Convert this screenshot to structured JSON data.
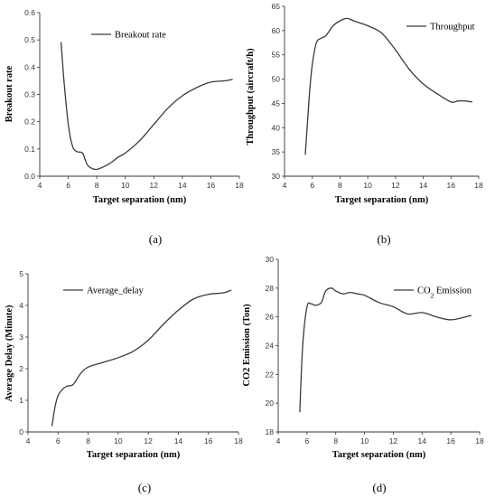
{
  "chart_data": [
    {
      "type": "line",
      "panel_label": "(a)",
      "xlabel": "Target separation (nm)",
      "ylabel": "Breakout rate",
      "xlim": [
        4,
        18
      ],
      "ylim": [
        0,
        0.6
      ],
      "x_ticks": [
        4,
        6,
        8,
        10,
        12,
        14,
        16,
        18
      ],
      "y_ticks": [
        0.0,
        0.1,
        0.2,
        0.3,
        0.4,
        0.5,
        0.6
      ],
      "y_tick_labels": [
        "0.0",
        "0.1",
        "0.2",
        "0.3",
        "0.4",
        "0.5",
        "0.6"
      ],
      "legend_position": "top-center",
      "series": [
        {
          "name": "Breakout rate",
          "x": [
            5.5,
            5.7,
            6.0,
            6.3,
            6.6,
            7.0,
            7.3,
            7.6,
            8.0,
            8.5,
            9.0,
            9.5,
            10.0,
            11.0,
            12.0,
            13.0,
            14.0,
            15.0,
            16.0,
            17.0,
            17.5
          ],
          "y": [
            0.49,
            0.35,
            0.19,
            0.11,
            0.09,
            0.085,
            0.045,
            0.03,
            0.025,
            0.035,
            0.05,
            0.07,
            0.085,
            0.13,
            0.19,
            0.25,
            0.295,
            0.325,
            0.345,
            0.35,
            0.355
          ]
        }
      ]
    },
    {
      "type": "line",
      "panel_label": "(b)",
      "xlabel": "Target separation (nm)",
      "ylabel": "Throughput (aircraft/h)",
      "xlim": [
        4,
        18
      ],
      "ylim": [
        30,
        65
      ],
      "x_ticks": [
        4,
        6,
        8,
        10,
        12,
        14,
        16,
        18
      ],
      "y_ticks": [
        30,
        35,
        40,
        45,
        50,
        55,
        60,
        65
      ],
      "y_tick_labels": [
        "30",
        "35",
        "40",
        "45",
        "50",
        "55",
        "60",
        "65"
      ],
      "legend_position": "top-right",
      "series": [
        {
          "name": "Throughput",
          "x": [
            5.5,
            5.8,
            6.0,
            6.3,
            6.7,
            7.0,
            7.5,
            8.0,
            8.5,
            9.0,
            9.5,
            10.0,
            11.0,
            12.0,
            13.0,
            14.0,
            15.0,
            16.0,
            16.5,
            17.0,
            17.5
          ],
          "y": [
            34.5,
            47,
            53,
            57.5,
            58.5,
            59,
            61,
            62,
            62.5,
            62,
            61.5,
            61,
            59.5,
            56,
            52,
            49,
            47,
            45.3,
            45.5,
            45.5,
            45.3
          ]
        }
      ]
    },
    {
      "type": "line",
      "panel_label": "(c)",
      "xlabel": "Target separation (nm)",
      "ylabel": "Average Delay (Minute)",
      "xlim": [
        4,
        18
      ],
      "ylim": [
        0,
        5
      ],
      "x_ticks": [
        4,
        6,
        8,
        10,
        12,
        14,
        16,
        18
      ],
      "y_ticks": [
        0,
        1,
        2,
        3,
        4,
        5
      ],
      "y_tick_labels": [
        "0",
        "1",
        "2",
        "3",
        "4",
        "5"
      ],
      "legend_position": "top-left",
      "series": [
        {
          "name": "Average_delay",
          "x": [
            5.6,
            5.8,
            6.0,
            6.3,
            6.6,
            7.0,
            7.5,
            8.0,
            9.0,
            10.0,
            11.0,
            12.0,
            13.0,
            14.0,
            15.0,
            16.0,
            17.0,
            17.5
          ],
          "y": [
            0.2,
            0.8,
            1.15,
            1.35,
            1.45,
            1.5,
            1.85,
            2.05,
            2.2,
            2.35,
            2.55,
            2.9,
            3.4,
            3.85,
            4.2,
            4.35,
            4.4,
            4.48
          ]
        }
      ]
    },
    {
      "type": "line",
      "panel_label": "(d)",
      "xlabel": "Target separation (nm)",
      "ylabel": "CO2 Emission (Ton)",
      "xlim": [
        4,
        18
      ],
      "ylim": [
        18,
        30
      ],
      "x_ticks": [
        4,
        6,
        8,
        10,
        12,
        14,
        16,
        18
      ],
      "y_ticks": [
        18,
        20,
        22,
        24,
        26,
        28,
        30
      ],
      "y_tick_labels": [
        "18",
        "20",
        "22",
        "24",
        "26",
        "28",
        "30"
      ],
      "legend_position": "top-right",
      "series": [
        {
          "name": "CO2 Emission",
          "x": [
            5.5,
            5.7,
            6.0,
            6.3,
            6.6,
            7.0,
            7.3,
            7.7,
            8.0,
            8.5,
            9.0,
            9.5,
            10.0,
            11.0,
            12.0,
            13.0,
            14.0,
            15.0,
            16.0,
            17.0,
            17.4
          ],
          "y": [
            19.4,
            24,
            26.7,
            26.9,
            26.8,
            27,
            27.8,
            28,
            27.8,
            27.6,
            27.7,
            27.6,
            27.5,
            27,
            26.7,
            26.2,
            26.3,
            26,
            25.8,
            26,
            26.1
          ]
        }
      ]
    }
  ]
}
